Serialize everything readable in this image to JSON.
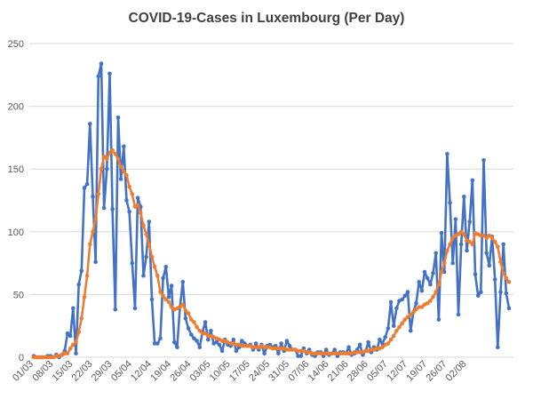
{
  "chart_data": {
    "type": "line",
    "title": "COVID-19-Cases in Luxembourg (Per Day)",
    "xlabel": "",
    "ylabel": "",
    "ylim": [
      0,
      250
    ],
    "yticks": [
      0,
      50,
      100,
      150,
      200,
      250
    ],
    "grid": true,
    "legend": "none",
    "start_date": "01/03",
    "x_tick_labels": [
      "01/03",
      "08/03",
      "15/03",
      "22/03",
      "29/03",
      "05/04",
      "12/04",
      "19/04",
      "26/04",
      "03/05",
      "10/05",
      "17/05",
      "24/05",
      "31/05",
      "07/06",
      "14/06",
      "21/06",
      "28/06",
      "05/07",
      "12/07",
      "19/07",
      "26/07",
      "02/08"
    ],
    "colors": {
      "daily": "#4472C4",
      "average": "#ED7D31",
      "grid": "#D9D9D9"
    },
    "series": [
      {
        "key": "daily",
        "values": [
          1,
          0,
          0,
          0,
          0,
          1,
          1,
          0,
          2,
          0,
          2,
          5,
          19,
          17,
          39,
          3,
          58,
          69,
          135,
          138,
          186,
          128,
          76,
          224,
          234,
          119,
          150,
          226,
          118,
          38,
          191,
          142,
          168,
          125,
          116,
          75,
          39,
          127,
          120,
          65,
          80,
          108,
          46,
          11,
          11,
          15,
          63,
          72,
          48,
          57,
          12,
          8,
          40,
          60,
          31,
          23,
          18,
          15,
          13,
          8,
          20,
          28,
          14,
          21,
          11,
          12,
          10,
          5,
          14,
          10,
          9,
          14,
          5,
          8,
          13,
          11,
          9,
          10,
          6,
          11,
          6,
          10,
          3,
          9,
          10,
          8,
          9,
          3,
          11,
          5,
          13,
          9,
          6,
          6,
          1,
          1,
          7,
          3,
          6,
          2,
          1,
          4,
          4,
          1,
          6,
          2,
          3,
          6,
          1,
          4,
          4,
          3,
          8,
          2,
          3,
          6,
          10,
          2,
          5,
          12,
          4,
          8,
          6,
          14,
          11,
          16,
          23,
          44,
          25,
          39,
          45,
          46,
          49,
          52,
          21,
          36,
          43,
          60,
          53,
          68,
          63,
          58,
          67,
          83,
          30,
          99,
          68,
          162,
          123,
          75,
          110,
          34,
          90,
          128,
          85,
          108,
          141,
          66,
          49,
          52,
          157,
          83,
          73,
          96,
          62,
          8,
          52,
          90,
          51,
          39
        ]
      },
      {
        "key": "average",
        "values": [
          0,
          0,
          0,
          0,
          0,
          0,
          0,
          0,
          1,
          1,
          2,
          3,
          3,
          7,
          10,
          12,
          20,
          31,
          48,
          65,
          90,
          100,
          110,
          130,
          150,
          160,
          158,
          163,
          165,
          162,
          158,
          152,
          148,
          145,
          136,
          130,
          120,
          121,
          115,
          105,
          98,
          90,
          80,
          72,
          65,
          52,
          49,
          46,
          44,
          40,
          38,
          39,
          40,
          42,
          37,
          35,
          30,
          28,
          24,
          21,
          19,
          19,
          17,
          17,
          16,
          15,
          14,
          13,
          13,
          12,
          11,
          11,
          10,
          10,
          9,
          9,
          9,
          9,
          8,
          8,
          8,
          9,
          8,
          8,
          8,
          7,
          7,
          7,
          7,
          7,
          6,
          6,
          6,
          6,
          5,
          5,
          5,
          4,
          4,
          3,
          3,
          3,
          3,
          3,
          3,
          3,
          3,
          3,
          3,
          3,
          3,
          3,
          3,
          3,
          4,
          4,
          4,
          4,
          5,
          5,
          6,
          6,
          7,
          7,
          8,
          10,
          11,
          14,
          17,
          21,
          24,
          27,
          30,
          32,
          34,
          36,
          38,
          40,
          40,
          42,
          43,
          45,
          48,
          52,
          58,
          68,
          75,
          85,
          90,
          95,
          97,
          98,
          100,
          98,
          93,
          92,
          90,
          99,
          98,
          97,
          97,
          95,
          97,
          95,
          92,
          88,
          76,
          67,
          63,
          60
        ]
      }
    ]
  }
}
